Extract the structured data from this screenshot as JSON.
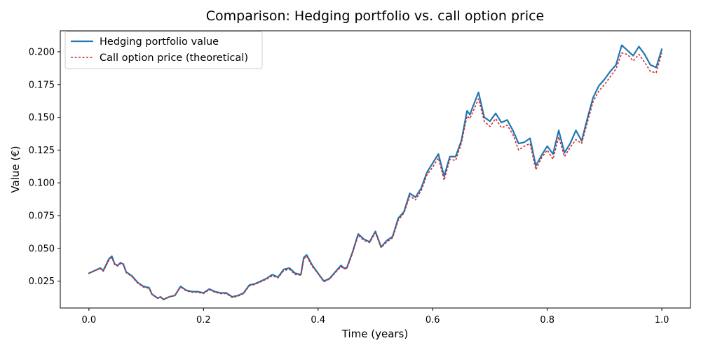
{
  "chart_data": {
    "type": "line",
    "title": "Comparison: Hedging portfolio vs. call option price",
    "xlabel": "Time (years)",
    "ylabel": "Value (€)",
    "xlim": [
      -0.05,
      1.05
    ],
    "ylim": [
      0.0045,
      0.216
    ],
    "xticks": [
      0.0,
      0.2,
      0.4,
      0.6,
      0.8,
      1.0
    ],
    "xtick_labels": [
      "0.0",
      "0.2",
      "0.4",
      "0.6",
      "0.8",
      "1.0"
    ],
    "yticks": [
      0.025,
      0.05,
      0.075,
      0.1,
      0.125,
      0.15,
      0.175,
      0.2
    ],
    "ytick_labels": [
      "0.025",
      "0.050",
      "0.075",
      "0.100",
      "0.125",
      "0.150",
      "0.175",
      "0.200"
    ],
    "grid": false,
    "legend": "top-left",
    "x": [
      0.0,
      0.01,
      0.02,
      0.025,
      0.035,
      0.04,
      0.045,
      0.05,
      0.055,
      0.06,
      0.065,
      0.075,
      0.085,
      0.095,
      0.105,
      0.11,
      0.12,
      0.125,
      0.13,
      0.14,
      0.15,
      0.16,
      0.17,
      0.18,
      0.19,
      0.2,
      0.21,
      0.22,
      0.23,
      0.24,
      0.25,
      0.26,
      0.27,
      0.28,
      0.29,
      0.3,
      0.31,
      0.32,
      0.33,
      0.34,
      0.35,
      0.36,
      0.37,
      0.375,
      0.38,
      0.39,
      0.395,
      0.4,
      0.41,
      0.42,
      0.43,
      0.44,
      0.445,
      0.45,
      0.46,
      0.47,
      0.48,
      0.49,
      0.5,
      0.51,
      0.52,
      0.53,
      0.54,
      0.55,
      0.56,
      0.57,
      0.58,
      0.59,
      0.6,
      0.61,
      0.62,
      0.63,
      0.64,
      0.65,
      0.66,
      0.665,
      0.67,
      0.68,
      0.69,
      0.7,
      0.71,
      0.72,
      0.73,
      0.74,
      0.75,
      0.76,
      0.77,
      0.78,
      0.79,
      0.8,
      0.81,
      0.82,
      0.83,
      0.84,
      0.85,
      0.86,
      0.87,
      0.88,
      0.89,
      0.9,
      0.91,
      0.92,
      0.93,
      0.94,
      0.95,
      0.96,
      0.97,
      0.98,
      0.99,
      1.0
    ],
    "series": [
      {
        "name": "Hedging portfolio value",
        "color": "#1f77b4",
        "style": "solid",
        "values": [
          0.031,
          0.033,
          0.035,
          0.033,
          0.042,
          0.044,
          0.038,
          0.037,
          0.039,
          0.038,
          0.032,
          0.029,
          0.024,
          0.021,
          0.02,
          0.015,
          0.012,
          0.013,
          0.011,
          0.013,
          0.014,
          0.021,
          0.018,
          0.017,
          0.017,
          0.016,
          0.019,
          0.017,
          0.016,
          0.016,
          0.013,
          0.014,
          0.016,
          0.022,
          0.023,
          0.025,
          0.027,
          0.03,
          0.028,
          0.034,
          0.035,
          0.031,
          0.03,
          0.043,
          0.045,
          0.037,
          0.034,
          0.031,
          0.025,
          0.027,
          0.032,
          0.037,
          0.035,
          0.035,
          0.047,
          0.061,
          0.057,
          0.055,
          0.063,
          0.051,
          0.056,
          0.059,
          0.073,
          0.078,
          0.092,
          0.089,
          0.096,
          0.108,
          0.115,
          0.122,
          0.105,
          0.12,
          0.12,
          0.132,
          0.155,
          0.152,
          0.158,
          0.169,
          0.15,
          0.147,
          0.153,
          0.146,
          0.148,
          0.14,
          0.13,
          0.131,
          0.134,
          0.113,
          0.121,
          0.128,
          0.122,
          0.14,
          0.123,
          0.13,
          0.14,
          0.132,
          0.149,
          0.165,
          0.174,
          0.179,
          0.185,
          0.19,
          0.205,
          0.201,
          0.197,
          0.204,
          0.198,
          0.19,
          0.188,
          0.202
        ]
      },
      {
        "name": "Call option price (theoretical)",
        "color": "#d62728",
        "style": "dashed",
        "values": [
          0.031,
          0.033,
          0.0345,
          0.0325,
          0.041,
          0.043,
          0.0375,
          0.0365,
          0.0385,
          0.0375,
          0.0315,
          0.0285,
          0.0235,
          0.0205,
          0.0195,
          0.015,
          0.012,
          0.013,
          0.011,
          0.013,
          0.014,
          0.0205,
          0.0175,
          0.0165,
          0.0165,
          0.0155,
          0.0185,
          0.0165,
          0.0155,
          0.0155,
          0.0125,
          0.0135,
          0.0155,
          0.0215,
          0.0225,
          0.0245,
          0.0265,
          0.029,
          0.0275,
          0.033,
          0.034,
          0.03,
          0.0295,
          0.042,
          0.044,
          0.036,
          0.0335,
          0.0305,
          0.0245,
          0.0265,
          0.0315,
          0.036,
          0.0345,
          0.0345,
          0.046,
          0.06,
          0.056,
          0.0545,
          0.062,
          0.0505,
          0.055,
          0.058,
          0.0715,
          0.077,
          0.09,
          0.087,
          0.094,
          0.106,
          0.112,
          0.119,
          0.102,
          0.118,
          0.117,
          0.13,
          0.151,
          0.149,
          0.154,
          0.164,
          0.147,
          0.143,
          0.149,
          0.142,
          0.144,
          0.137,
          0.125,
          0.128,
          0.13,
          0.11,
          0.119,
          0.125,
          0.118,
          0.135,
          0.12,
          0.127,
          0.133,
          0.13,
          0.146,
          0.162,
          0.17,
          0.175,
          0.181,
          0.187,
          0.199,
          0.198,
          0.193,
          0.198,
          0.192,
          0.185,
          0.184,
          0.199
        ]
      }
    ]
  },
  "colors": {
    "hedging": "#1f77b4",
    "call": "#d62728",
    "axis": "#000000",
    "legend_border": "#cccccc"
  }
}
